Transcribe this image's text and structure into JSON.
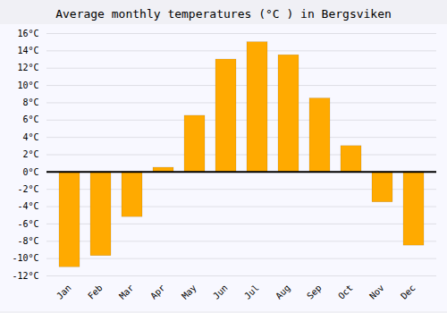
{
  "chart_data": {
    "type": "bar",
    "title": "Average monthly temperatures (°C ) in Bergsviken",
    "categories": [
      "Jan",
      "Feb",
      "Mar",
      "Apr",
      "May",
      "Jun",
      "Jul",
      "Aug",
      "Sep",
      "Oct",
      "Nov",
      "Dec"
    ],
    "values": [
      -11.0,
      -9.7,
      -5.2,
      0.5,
      6.5,
      13.0,
      15.0,
      13.5,
      8.5,
      3.0,
      -3.5,
      -8.5
    ],
    "color": "#FFAA00",
    "ylim": [
      -12,
      16
    ],
    "yticks": [
      {
        "value": -12,
        "label": "-12°C"
      },
      {
        "value": -10,
        "label": "-10°C"
      },
      {
        "value": -8,
        "label": "-8°C"
      },
      {
        "value": -6,
        "label": "-6°C"
      },
      {
        "value": -4,
        "label": "-4°C"
      },
      {
        "value": -2,
        "label": "-2°C"
      },
      {
        "value": 0,
        "label": "0°C"
      },
      {
        "value": 2,
        "label": "2°C"
      },
      {
        "value": 4,
        "label": "4°C"
      },
      {
        "value": 6,
        "label": "6°C"
      },
      {
        "value": 8,
        "label": "8°C"
      },
      {
        "value": 10,
        "label": "10°C"
      },
      {
        "value": 12,
        "label": "12°C"
      },
      {
        "value": 14,
        "label": "14°C"
      },
      {
        "value": 16,
        "label": "16°C"
      }
    ],
    "grid": true
  }
}
